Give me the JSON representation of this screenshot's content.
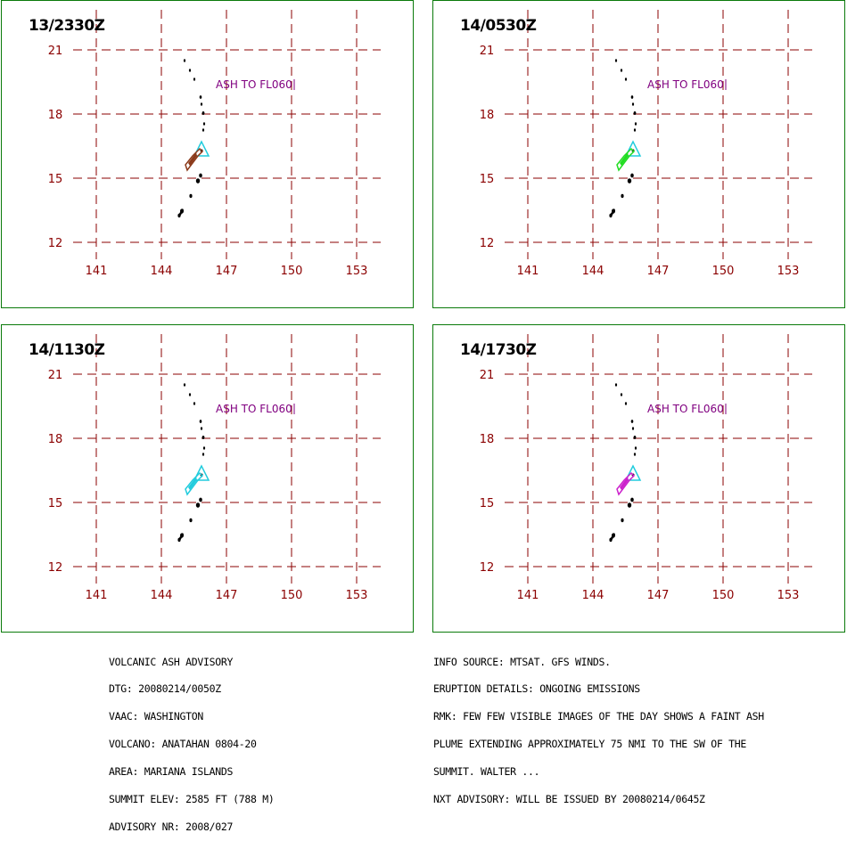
{
  "panels": [
    {
      "time": "13/2330Z",
      "plume_color": "#8b3a1a"
    },
    {
      "time": "14/0530Z",
      "plume_color": "#22dd22"
    },
    {
      "time": "14/1130Z",
      "plume_color": "#22ccdd"
    },
    {
      "time": "14/1730Z",
      "plume_color": "#cc22cc"
    }
  ],
  "map": {
    "lat_labels": [
      "21",
      "18",
      "15",
      "12"
    ],
    "lon_labels": [
      "141",
      "144",
      "147",
      "150",
      "153"
    ],
    "annotation": "ASH TO FL060",
    "colors": {
      "grid": "#8b0000",
      "annotation": "#800080",
      "volcano_marker": "#22ccdd",
      "islands": "#000000",
      "frame": "#0a7a0a"
    }
  },
  "advisory_left": [
    "VOLCANIC ASH ADVISORY",
    "DTG: 20080214/0050Z",
    "VAAC: WASHINGTON",
    "VOLCANO: ANATAHAN 0804-20",
    "AREA: MARIANA ISLANDS",
    "SUMMIT ELEV: 2585 FT (788 M)",
    "ADVISORY NR: 2008/027"
  ],
  "advisory_right": [
    "INFO SOURCE: MTSAT. GFS WINDS.",
    "ERUPTION DETAILS: ONGOING EMISSIONS",
    "RMK: FEW FEW VISIBLE IMAGES OF THE DAY SHOWS A FAINT ASH",
    "PLUME EXTENDING APPROXIMATELY 75 NMI TO THE SW OF THE",
    "SUMMIT. WALTER ...",
    "NXT ADVISORY: WILL BE ISSUED BY 20080214/0645Z"
  ]
}
